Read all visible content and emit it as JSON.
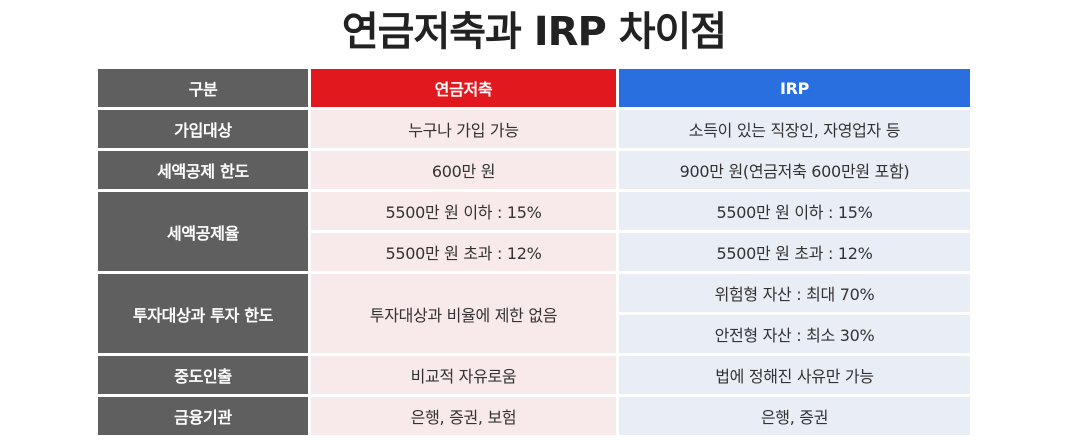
{
  "title": "연금저축과 IRP 차이점",
  "header": {
    "category": "구분",
    "pension": "연금저축",
    "irp": "IRP"
  },
  "rows": {
    "join": {
      "label": "가입대상",
      "pension": "누구나 가입 가능",
      "irp": "소득이 있는 직장인, 자영업자 등"
    },
    "limit": {
      "label": "세액공제 한도",
      "pension": "600만 원",
      "irp": "900만 원(연금저축 600만원 포함)"
    },
    "rate": {
      "label": "세액공제율",
      "pension_low": "5500만 원 이하 : 15%",
      "pension_high": "5500만 원 초과 : 12%",
      "irp_low": "5500만 원 이하 : 15%",
      "irp_high": "5500만 원 초과 : 12%"
    },
    "invest": {
      "label": "투자대상과 투자 한도",
      "pension": "투자대상과 비율에 제한 없음",
      "irp_risky": "위험형 자산 : 최대 70%",
      "irp_safe": "안전형 자산 : 최소 30%"
    },
    "withdraw": {
      "label": "중도인출",
      "pension": "비교적 자유로움",
      "irp": "법에 정해진 사유만 가능"
    },
    "institution": {
      "label": "금융기관",
      "pension": "은행, 증권, 보험",
      "irp": "은행, 증권"
    }
  },
  "colors": {
    "label_bg": "#5f5f5f",
    "pension_header": "#e1181d",
    "irp_header": "#2a6fe0",
    "pension_cell": "#f8e9ea",
    "irp_cell": "#e9eef6"
  }
}
